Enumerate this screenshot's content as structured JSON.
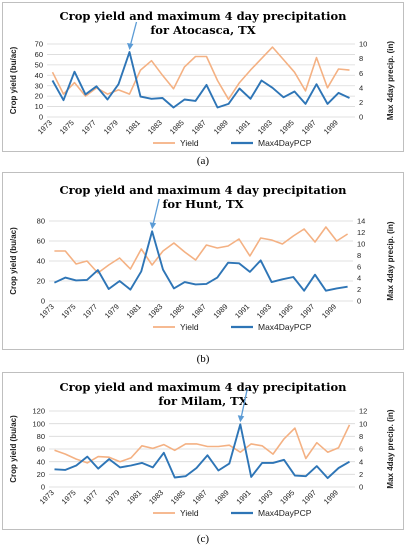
{
  "legend_labels": {
    "yield": "Yield",
    "pcp": "Max4DayPCP"
  },
  "colors": {
    "yield": "#f4b183",
    "pcp": "#2e75b6",
    "arrow": "#5b9bd5",
    "grid": "#d9d9d9"
  },
  "chart_data": [
    {
      "type": "line",
      "caption": "(a)",
      "title_line1": "Crop yield and maximum 4 day precipitation",
      "title_line2": "for Atocasca, TX",
      "ylabel_left": "Crop yield (bu/ac)",
      "ylabel_right": "Max 4day precip. (in)",
      "ylim_left": [
        0,
        70
      ],
      "yticks_left": [
        0,
        10,
        20,
        30,
        40,
        50,
        60,
        70
      ],
      "ylim_right": [
        0,
        10
      ],
      "yticks_right": [
        0,
        2,
        4,
        6,
        8,
        10
      ],
      "x": [
        1973,
        1974,
        1975,
        1976,
        1977,
        1978,
        1979,
        1980,
        1981,
        1982,
        1983,
        1984,
        1985,
        1986,
        1987,
        1988,
        1989,
        1990,
        1991,
        1992,
        1993,
        1994,
        1995,
        1996,
        1997,
        1998,
        1999,
        2000
      ],
      "xticks": [
        "1973",
        "1975",
        "1977",
        "1979",
        "1981",
        "1983",
        "1985",
        "1987",
        "1989",
        "1991",
        "1993",
        "1995",
        "1997",
        "1999"
      ],
      "series": [
        {
          "name": "Yield",
          "axis": "left",
          "values": [
            43,
            22,
            33,
            20,
            28,
            22,
            26,
            22,
            45,
            54,
            40,
            27,
            48,
            58,
            58,
            35,
            17,
            33,
            45,
            56,
            67,
            55,
            43,
            25,
            57,
            28,
            46,
            45
          ]
        },
        {
          "name": "Max4DayPCP",
          "axis": "right",
          "values": [
            5.0,
            2.3,
            6.2,
            3.1,
            4.2,
            2.4,
            4.5,
            8.9,
            2.8,
            2.5,
            2.6,
            1.3,
            2.4,
            2.2,
            4.4,
            1.3,
            1.8,
            3.9,
            2.5,
            5.0,
            4.0,
            2.7,
            3.5,
            1.8,
            4.5,
            1.8,
            3.3,
            2.6
          ]
        }
      ],
      "annotation_index": 7
    },
    {
      "type": "line",
      "caption": "(b)",
      "title_line1": "Crop yield and maximum 4 day precipitation",
      "title_line2": "for Hunt, TX",
      "ylabel_left": "Crop yield (bu/ac)",
      "ylabel_right": "Max 4day precip. (in)",
      "ylim_left": [
        0,
        80
      ],
      "yticks_left": [
        0,
        20,
        40,
        60,
        80
      ],
      "ylim_right": [
        0,
        14
      ],
      "yticks_right": [
        0,
        2,
        4,
        6,
        8,
        10,
        12,
        14
      ],
      "x": [
        1973,
        1974,
        1975,
        1976,
        1977,
        1978,
        1979,
        1980,
        1981,
        1982,
        1983,
        1984,
        1985,
        1986,
        1987,
        1988,
        1989,
        1990,
        1991,
        1992,
        1993,
        1994,
        1995,
        1996,
        1997,
        1998,
        1999,
        2000
      ],
      "xticks": [
        "1973",
        "1975",
        "1977",
        "1979",
        "1981",
        "1983",
        "1985",
        "1987",
        "1989",
        "1991",
        "1993",
        "1995",
        "1997",
        "1999"
      ],
      "series": [
        {
          "name": "Yield",
          "axis": "left",
          "values": [
            50,
            50,
            37,
            40,
            28,
            36,
            43,
            32,
            52,
            36,
            50,
            58,
            49,
            41,
            56,
            53,
            55,
            62,
            45,
            63,
            61,
            57,
            65,
            72,
            59,
            74,
            60,
            67
          ]
        },
        {
          "name": "Max4DayPCP",
          "axis": "right",
          "values": [
            3.2,
            4.1,
            3.6,
            3.7,
            5.4,
            2.1,
            3.5,
            2.0,
            5.2,
            12.2,
            5.5,
            2.2,
            3.3,
            2.9,
            3.0,
            4.1,
            6.7,
            6.6,
            5.1,
            7.1,
            3.3,
            3.8,
            4.2,
            1.8,
            4.6,
            1.8,
            2.2,
            2.5
          ]
        }
      ],
      "annotation_index": 9
    },
    {
      "type": "line",
      "caption": "(c)",
      "title_line1": "Crop yield and maximum 4 day precipitation",
      "title_line2": "for Milam, TX",
      "ylabel_left": "Crop yield (bu/ac)",
      "ylabel_right": "Max 4day precip. (in)",
      "ylim_left": [
        0,
        120
      ],
      "yticks_left": [
        0,
        20,
        40,
        60,
        80,
        100,
        120
      ],
      "ylim_right": [
        0,
        12
      ],
      "yticks_right": [
        0,
        2,
        4,
        6,
        8,
        10,
        12
      ],
      "x": [
        1973,
        1974,
        1975,
        1976,
        1977,
        1978,
        1979,
        1980,
        1981,
        1982,
        1983,
        1984,
        1985,
        1986,
        1987,
        1988,
        1989,
        1990,
        1991,
        1992,
        1993,
        1994,
        1995,
        1996,
        1997,
        1998,
        1999,
        2000
      ],
      "xticks": [
        "1973",
        "1975",
        "1977",
        "1979",
        "1981",
        "1983",
        "1985",
        "1987",
        "1989",
        "1991",
        "1993",
        "1995",
        "1997",
        "1999"
      ],
      "series": [
        {
          "name": "Yield",
          "axis": "left",
          "values": [
            58,
            52,
            44,
            38,
            48,
            47,
            40,
            46,
            65,
            61,
            67,
            58,
            68,
            68,
            64,
            64,
            66,
            55,
            68,
            65,
            52,
            76,
            93,
            45,
            70,
            55,
            62,
            98
          ]
        },
        {
          "name": "Max4DayPCP",
          "axis": "right",
          "values": [
            2.8,
            2.7,
            3.4,
            4.8,
            2.9,
            4.4,
            3.1,
            3.4,
            3.8,
            3.1,
            5.4,
            1.5,
            1.7,
            3.0,
            5.0,
            2.6,
            3.7,
            9.9,
            1.6,
            3.8,
            3.8,
            4.3,
            1.8,
            1.7,
            3.3,
            1.4,
            3.0,
            4.0
          ]
        }
      ],
      "annotation_index": 17
    }
  ]
}
